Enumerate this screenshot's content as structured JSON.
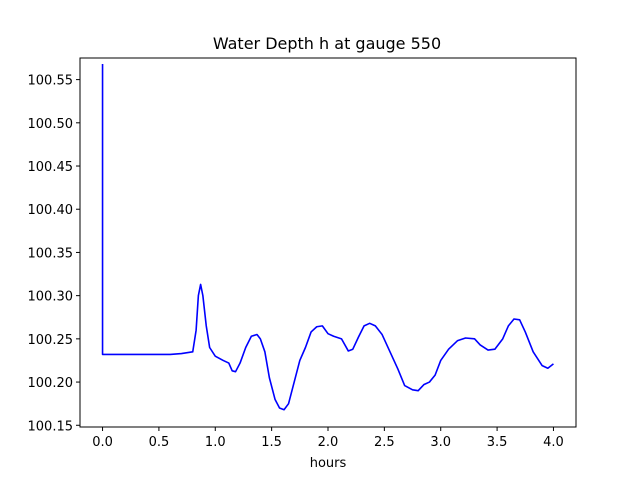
{
  "chart_data": {
    "type": "line",
    "title": "Water Depth h at gauge 550",
    "xlabel": "hours",
    "ylabel": "",
    "xlim": [
      -0.2,
      4.2
    ],
    "ylim": [
      100.148,
      100.575
    ],
    "grid": false,
    "xticks": [
      0.0,
      0.5,
      1.0,
      1.5,
      2.0,
      2.5,
      3.0,
      3.5,
      4.0
    ],
    "xtick_labels": [
      "0.0",
      "0.5",
      "1.0",
      "1.5",
      "2.0",
      "2.5",
      "3.0",
      "3.5",
      "4.0"
    ],
    "yticks": [
      100.15,
      100.2,
      100.25,
      100.3,
      100.35,
      100.4,
      100.45,
      100.5,
      100.55
    ],
    "ytick_labels": [
      "100.15",
      "100.20",
      "100.25",
      "100.30",
      "100.35",
      "100.40",
      "100.45",
      "100.50",
      "100.55"
    ],
    "series": [
      {
        "color": "#0000ff",
        "x": [
          0.0,
          0.0,
          0.05,
          0.3,
          0.5,
          0.6,
          0.7,
          0.8,
          0.83,
          0.85,
          0.87,
          0.89,
          0.92,
          0.95,
          1.0,
          1.07,
          1.12,
          1.15,
          1.18,
          1.22,
          1.27,
          1.32,
          1.37,
          1.4,
          1.44,
          1.48,
          1.53,
          1.57,
          1.61,
          1.65,
          1.7,
          1.75,
          1.8,
          1.85,
          1.9,
          1.95,
          2.0,
          2.05,
          2.12,
          2.18,
          2.22,
          2.27,
          2.32,
          2.37,
          2.42,
          2.48,
          2.55,
          2.62,
          2.68,
          2.75,
          2.8,
          2.85,
          2.9,
          2.95,
          3.0,
          3.07,
          3.15,
          3.22,
          3.3,
          3.35,
          3.42,
          3.48,
          3.55,
          3.6,
          3.65,
          3.7,
          3.75,
          3.82,
          3.9,
          3.95,
          4.0
        ],
        "y": [
          100.568,
          100.232,
          100.232,
          100.232,
          100.232,
          100.232,
          100.233,
          100.235,
          100.26,
          100.3,
          100.313,
          100.3,
          100.265,
          100.24,
          100.23,
          100.225,
          100.222,
          100.213,
          100.212,
          100.222,
          100.24,
          100.253,
          100.255,
          100.25,
          100.235,
          100.205,
          100.18,
          100.17,
          100.168,
          100.175,
          100.2,
          100.225,
          100.24,
          100.258,
          100.264,
          100.265,
          100.256,
          100.253,
          100.25,
          100.236,
          100.238,
          100.252,
          100.265,
          100.268,
          100.265,
          100.255,
          100.235,
          100.215,
          100.196,
          100.191,
          100.19,
          100.197,
          100.2,
          100.208,
          100.225,
          100.238,
          100.248,
          100.251,
          100.25,
          100.243,
          100.237,
          100.238,
          100.25,
          100.265,
          100.273,
          100.272,
          100.258,
          100.235,
          100.219,
          100.216,
          100.221
        ]
      }
    ]
  }
}
